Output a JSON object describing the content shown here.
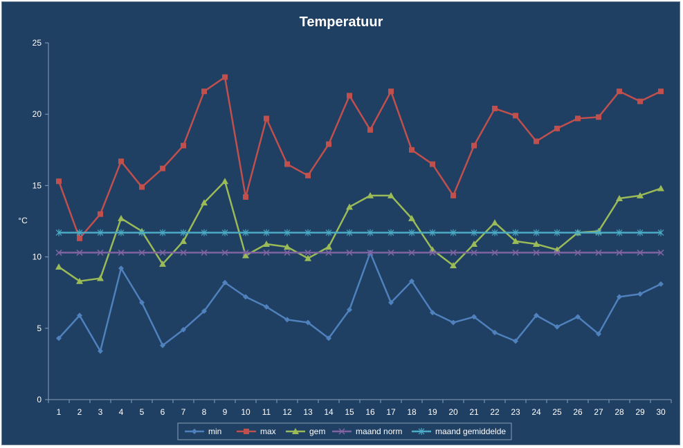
{
  "chart_data": {
    "type": "line",
    "title": "Temperatuur",
    "xlabel": "",
    "ylabel": "°C",
    "ylim": [
      0,
      25
    ],
    "yticks": [
      0,
      5,
      10,
      15,
      20,
      25
    ],
    "grid": false,
    "legend_position": "bottom",
    "x": [
      1,
      2,
      3,
      4,
      5,
      6,
      7,
      8,
      9,
      10,
      11,
      12,
      13,
      14,
      15,
      16,
      17,
      18,
      19,
      20,
      21,
      22,
      23,
      24,
      25,
      26,
      27,
      28,
      29,
      30
    ],
    "series": [
      {
        "name": "min",
        "color": "#4f81bd",
        "marker": "diamond",
        "values": [
          4.3,
          5.9,
          3.4,
          9.2,
          6.8,
          3.8,
          4.9,
          6.2,
          8.2,
          7.2,
          6.5,
          5.6,
          5.4,
          4.3,
          6.3,
          10.3,
          6.8,
          8.3,
          6.1,
          5.4,
          5.8,
          4.7,
          4.1,
          5.9,
          5.1,
          5.8,
          4.6,
          7.2,
          7.4,
          8.1
        ]
      },
      {
        "name": "max",
        "color": "#c0504d",
        "marker": "square",
        "values": [
          15.3,
          11.3,
          13.0,
          16.7,
          14.9,
          16.2,
          17.8,
          21.6,
          22.6,
          14.2,
          19.7,
          16.5,
          15.7,
          17.9,
          21.3,
          18.9,
          21.6,
          17.5,
          16.5,
          14.3,
          17.8,
          20.4,
          19.9,
          18.1,
          19.0,
          19.7,
          19.8,
          21.6,
          20.9,
          21.6
        ]
      },
      {
        "name": "gem",
        "color": "#9bbb59",
        "marker": "triangle",
        "values": [
          9.3,
          8.3,
          8.5,
          12.7,
          11.8,
          9.5,
          11.1,
          13.8,
          15.3,
          10.1,
          10.9,
          10.7,
          9.9,
          10.7,
          13.5,
          14.3,
          14.3,
          12.7,
          10.5,
          9.4,
          10.9,
          12.4,
          11.1,
          10.9,
          10.5,
          11.7,
          11.8,
          14.1,
          14.3,
          14.8
        ]
      },
      {
        "name": "maand norm",
        "color": "#8064a2",
        "marker": "x",
        "values": [
          10.3,
          10.3,
          10.3,
          10.3,
          10.3,
          10.3,
          10.3,
          10.3,
          10.3,
          10.3,
          10.3,
          10.3,
          10.3,
          10.3,
          10.3,
          10.3,
          10.3,
          10.3,
          10.3,
          10.3,
          10.3,
          10.3,
          10.3,
          10.3,
          10.3,
          10.3,
          10.3,
          10.3,
          10.3,
          10.3
        ]
      },
      {
        "name": "maand gemiddelde",
        "color": "#4bacc6",
        "marker": "star",
        "values": [
          11.7,
          11.7,
          11.7,
          11.7,
          11.7,
          11.7,
          11.7,
          11.7,
          11.7,
          11.7,
          11.7,
          11.7,
          11.7,
          11.7,
          11.7,
          11.7,
          11.7,
          11.7,
          11.7,
          11.7,
          11.7,
          11.7,
          11.7,
          11.7,
          11.7,
          11.7,
          11.7,
          11.7,
          11.7,
          11.7
        ]
      }
    ]
  }
}
